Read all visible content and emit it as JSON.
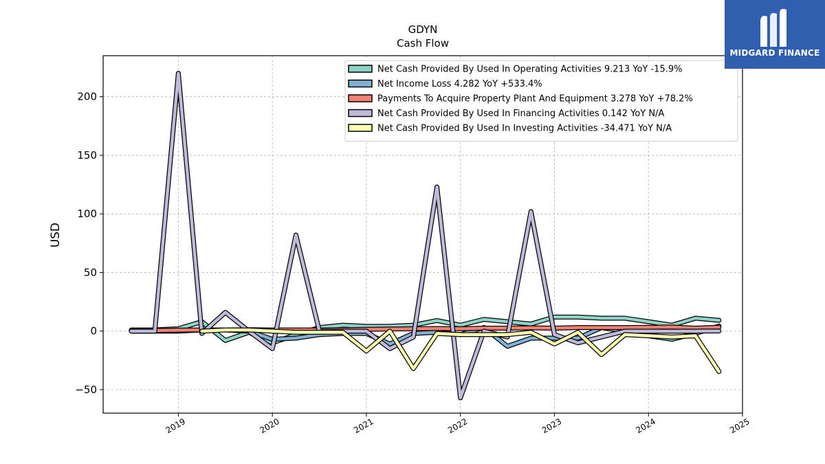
{
  "chart_data": {
    "type": "line",
    "title": "GDYN",
    "subtitle": "Cash Flow",
    "ylabel": "USD",
    "xlabel": "",
    "xlim": [
      2018.2,
      2025.0
    ],
    "ylim": [
      -70,
      235
    ],
    "x_ticks": [
      2019,
      2020,
      2021,
      2022,
      2023,
      2024,
      2025
    ],
    "y_ticks": [
      -50,
      0,
      50,
      100,
      150,
      200
    ],
    "y_tick_labels": [
      "−50",
      "0",
      "50",
      "100",
      "150",
      "200"
    ],
    "grid": true,
    "legend_position": "top-right",
    "series": [
      {
        "name": "Net Cash Provided By Used In Operating Activities  9.213 YoY -15.9%",
        "color": "#8dd3c7",
        "x": [
          2018.5,
          2018.75,
          2019.0,
          2019.25,
          2019.5,
          2019.75,
          2020.0,
          2020.25,
          2020.5,
          2020.75,
          2021.0,
          2021.25,
          2021.5,
          2021.75,
          2022.0,
          2022.25,
          2022.5,
          2022.75,
          2023.0,
          2023.25,
          2023.5,
          2023.75,
          2024.0,
          2024.25,
          2024.5,
          2024.75
        ],
        "y": [
          1,
          1,
          2,
          8,
          -8,
          -1,
          -10,
          -3,
          3,
          5,
          4,
          4,
          5,
          9,
          5,
          10,
          8,
          6,
          12,
          12,
          11,
          11,
          8,
          5,
          11,
          9.2
        ]
      },
      {
        "name": "Net Income Loss  4.282 YoY +533.4%",
        "color": "#80b1d3",
        "x": [
          2018.5,
          2018.75,
          2019.0,
          2019.25,
          2019.5,
          2019.75,
          2020.0,
          2020.25,
          2020.5,
          2020.75,
          2021.0,
          2021.25,
          2021.5,
          2021.75,
          2022.0,
          2022.25,
          2022.5,
          2022.75,
          2023.0,
          2023.25,
          2023.5,
          2023.75,
          2024.0,
          2024.25,
          2024.5,
          2024.75
        ],
        "y": [
          0,
          0,
          0,
          1,
          1,
          0,
          -7,
          -6,
          -3,
          -2,
          -2,
          -11,
          -2,
          -1,
          -3,
          3,
          -13,
          -6,
          -6,
          -6,
          3,
          0,
          -4,
          -7,
          -2,
          4.3
        ]
      },
      {
        "name": "Payments To Acquire Property Plant And Equipment  3.278 YoY +78.2%",
        "color": "#fb8072",
        "x": [
          2018.5,
          2018.75,
          2019.0,
          2019.25,
          2019.5,
          2019.75,
          2020.0,
          2020.25,
          2020.5,
          2020.75,
          2021.0,
          2021.25,
          2021.5,
          2021.75,
          2022.0,
          2022.25,
          2022.5,
          2022.75,
          2023.0,
          2023.25,
          2023.5,
          2023.75,
          2024.0,
          2024.25,
          2024.5,
          2024.75
        ],
        "y": [
          0.5,
          0.5,
          0.8,
          1,
          1,
          1.2,
          1,
          1,
          1,
          1.2,
          1.5,
          1.8,
          2,
          2.2,
          2,
          2.5,
          2.5,
          2.8,
          2.5,
          3,
          3,
          3,
          3.2,
          3.5,
          2.5,
          3.3
        ]
      },
      {
        "name": "Net Cash Provided By Used In Financing Activities  0.142 YoY N/A",
        "color": "#bebada",
        "x": [
          2018.5,
          2018.75,
          2019.0,
          2019.25,
          2019.5,
          2019.75,
          2020.0,
          2020.25,
          2020.5,
          2020.75,
          2021.0,
          2021.25,
          2021.5,
          2021.75,
          2022.0,
          2022.25,
          2022.5,
          2022.75,
          2023.0,
          2023.25,
          2023.5,
          2023.75,
          2024.0,
          2024.25,
          2024.5,
          2024.75
        ],
        "y": [
          0,
          0,
          220,
          -2,
          16,
          0,
          -15,
          82,
          0,
          0,
          0,
          -15,
          -5,
          123,
          -57,
          0,
          -5,
          102,
          -3,
          -10,
          -5,
          0,
          0,
          0,
          0,
          0.1
        ]
      },
      {
        "name": "Net Cash Provided By Used In Investing Activities  -34.471 YoY N/A",
        "color": "#ffffb3",
        "x": [
          2019.25,
          2019.5,
          2019.75,
          2020.0,
          2020.25,
          2020.5,
          2020.75,
          2021.0,
          2021.25,
          2021.5,
          2021.75,
          2022.0,
          2022.25,
          2022.5,
          2022.75,
          2023.0,
          2023.25,
          2023.5,
          2023.75,
          2024.0,
          2024.25,
          2024.5,
          2024.75
        ],
        "y": [
          0,
          1,
          1,
          0,
          -1,
          -1,
          -1,
          -17,
          0,
          -32,
          -2,
          -3,
          -3,
          -3,
          -1,
          -11,
          -1,
          -20,
          -3,
          -4,
          -5,
          -4,
          -34.5
        ]
      }
    ]
  },
  "logo": {
    "text": "MIDGARD FINANCE"
  }
}
